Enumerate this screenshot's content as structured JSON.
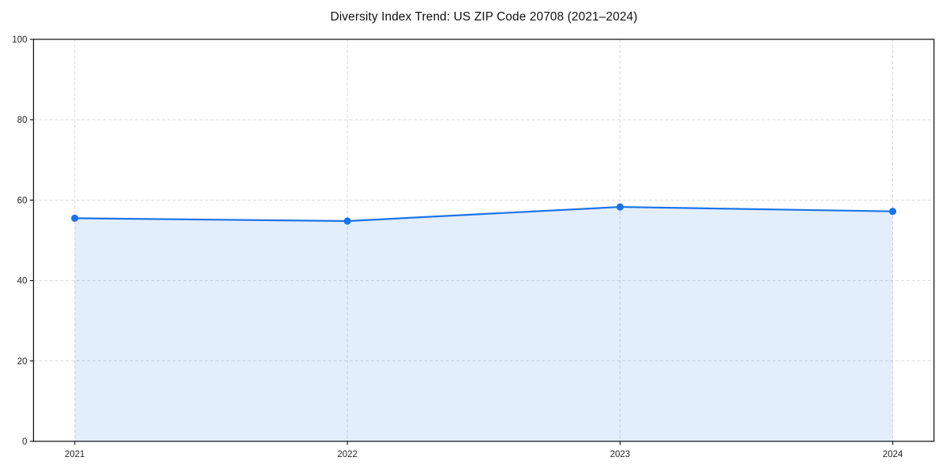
{
  "chart_data": {
    "type": "line",
    "title": "Diversity Index Trend: US ZIP Code 20708 (2021–2024)",
    "x": [
      "2021",
      "2022",
      "2023",
      "2024"
    ],
    "series": [
      {
        "name": "Diversity Index",
        "values": [
          55.5,
          54.8,
          58.3,
          57.2
        ]
      }
    ],
    "xlabel": "",
    "ylabel": "",
    "ylim": [
      0,
      100
    ],
    "yticks": [
      0,
      20,
      40,
      60,
      80,
      100
    ],
    "grid": "dashed light-gray gridlines, both horizontal (every 20) and vertical (every year)",
    "legend": "none",
    "area_under_line": true,
    "marker": "filled circle",
    "style": {
      "line_color": "#1a73e8",
      "marker_color": "#1a73e8",
      "area_fill": "rgba(26,115,232,0.12)",
      "grid_color": "#d9d9d9",
      "axis_color": "#1a1a1a",
      "tick_label_color": "#262626",
      "background": "#ffffff"
    }
  }
}
